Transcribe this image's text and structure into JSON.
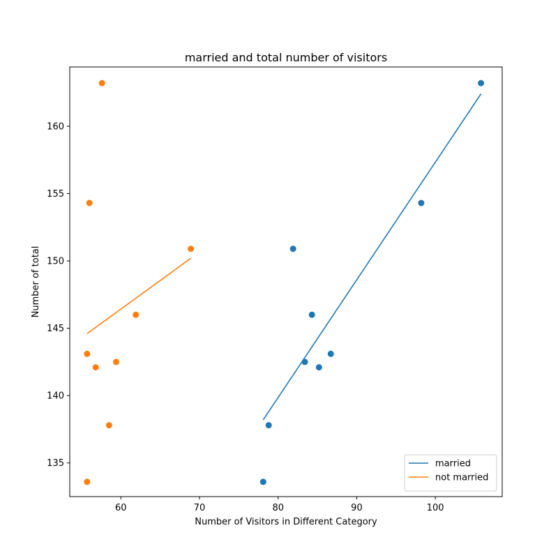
{
  "chart_data": {
    "type": "scatter",
    "title": "married and total number of visitors",
    "xlabel": "Number of Visitors in Different Category",
    "ylabel": "Number of total",
    "xlim": [
      53.5,
      108.5
    ],
    "ylim": [
      132.5,
      164.4
    ],
    "xticks": [
      60,
      70,
      80,
      90,
      100
    ],
    "yticks": [
      135,
      140,
      145,
      150,
      155,
      160
    ],
    "grid": false,
    "legend_position": "lower-right",
    "series": [
      {
        "name": "married",
        "color": "#1f77b4",
        "points": [
          {
            "x": 105.8,
            "y": 163.2
          },
          {
            "x": 98.2,
            "y": 154.3
          },
          {
            "x": 81.9,
            "y": 150.9
          },
          {
            "x": 84.3,
            "y": 146.0
          },
          {
            "x": 86.7,
            "y": 143.1
          },
          {
            "x": 83.4,
            "y": 142.5
          },
          {
            "x": 85.2,
            "y": 142.1
          },
          {
            "x": 78.8,
            "y": 137.8
          },
          {
            "x": 78.1,
            "y": 133.6
          }
        ],
        "fit_line": [
          {
            "x": 78.1,
            "y": 138.2
          },
          {
            "x": 105.8,
            "y": 162.4
          }
        ]
      },
      {
        "name": "not married",
        "color": "#ff7f0e",
        "points": [
          {
            "x": 57.6,
            "y": 163.2
          },
          {
            "x": 56.0,
            "y": 154.3
          },
          {
            "x": 68.9,
            "y": 150.9
          },
          {
            "x": 61.9,
            "y": 146.0
          },
          {
            "x": 55.7,
            "y": 143.1
          },
          {
            "x": 59.4,
            "y": 142.5
          },
          {
            "x": 56.8,
            "y": 142.1
          },
          {
            "x": 58.5,
            "y": 137.8
          },
          {
            "x": 55.7,
            "y": 133.6
          }
        ],
        "fit_line": [
          {
            "x": 55.7,
            "y": 144.6
          },
          {
            "x": 68.9,
            "y": 150.2
          }
        ]
      }
    ]
  }
}
